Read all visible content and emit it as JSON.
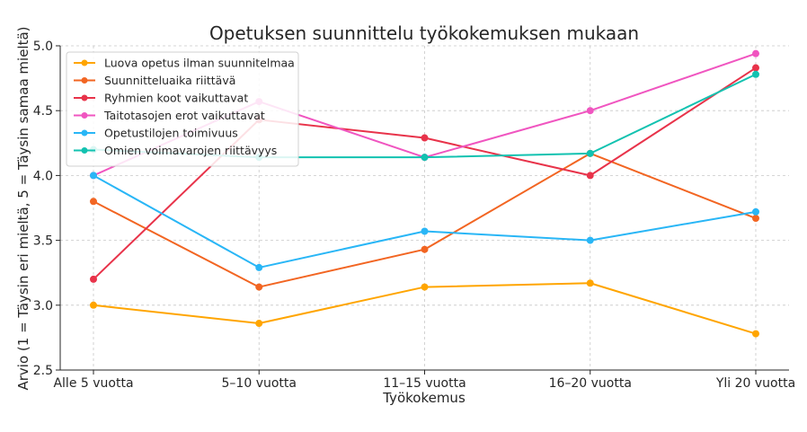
{
  "chart_data": {
    "type": "line",
    "title": "Opetuksen suunnittelu työkokemuksen mukaan",
    "xlabel": "Työkokemus",
    "ylabel": "Arvio (1 = Täysin eri mieltä, 5 = Täysin samaa mieltä)",
    "categories": [
      "Alle 5 vuotta",
      "5–10 vuotta",
      "11–15 vuotta",
      "16–20 vuotta",
      "Yli 20 vuotta"
    ],
    "ylim": [
      2.5,
      5.0
    ],
    "yticks": [
      "2.5",
      "3.0",
      "3.5",
      "4.0",
      "4.5",
      "5.0"
    ],
    "grid": true,
    "legend_position": "top-left",
    "series": [
      {
        "name": "Luova opetus ilman suunnitelmaa",
        "color": "#FFA500",
        "values": [
          3.0,
          2.86,
          3.14,
          3.17,
          2.78
        ]
      },
      {
        "name": "Suunnitteluaika riittävä",
        "color": "#F26522",
        "values": [
          3.8,
          3.14,
          3.43,
          4.17,
          3.67
        ]
      },
      {
        "name": "Ryhmien koot vaikuttavat",
        "color": "#E8334A",
        "values": [
          3.2,
          4.43,
          4.29,
          4.0,
          4.83
        ]
      },
      {
        "name": "Taitotasojen erot vaikuttavat",
        "color": "#F055C0",
        "values": [
          4.0,
          4.57,
          4.14,
          4.5,
          4.94
        ]
      },
      {
        "name": "Opetustilojen toimivuus",
        "color": "#29B6F6",
        "values": [
          4.0,
          3.29,
          3.57,
          3.5,
          3.72
        ]
      },
      {
        "name": "Omien voimavarojen riittävyys",
        "color": "#12C2B0",
        "values": [
          4.2,
          4.14,
          4.14,
          4.17,
          4.78
        ]
      }
    ]
  }
}
